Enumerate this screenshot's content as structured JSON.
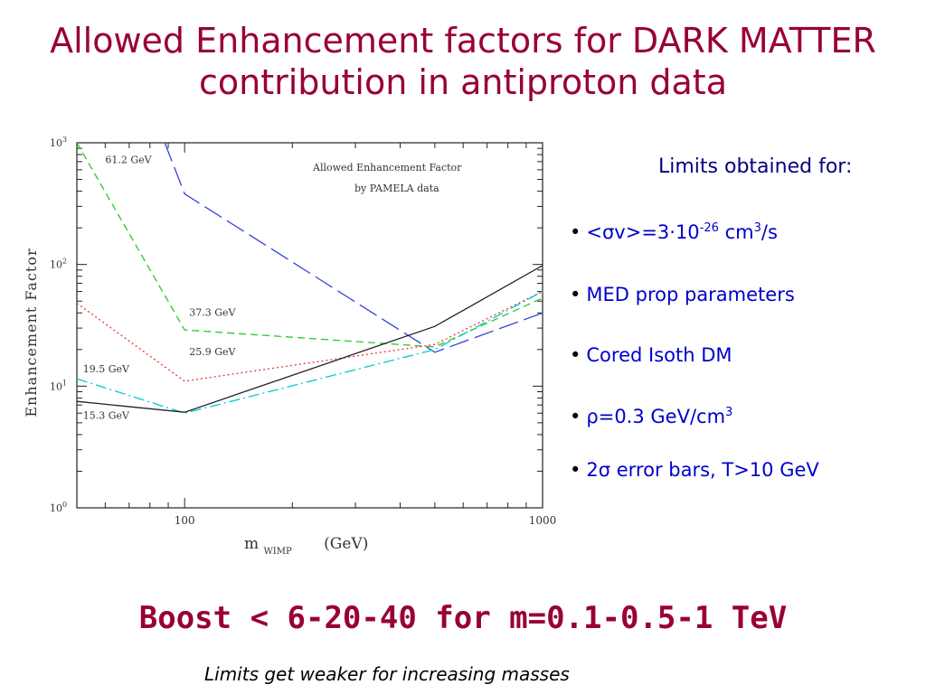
{
  "title_line1": "Allowed Enhancement factors for DARK MATTER",
  "title_line2": "contribution in antiproton data",
  "limits": {
    "heading": "Limits obtained for:",
    "sigma_prefix": "<σv>=3·10",
    "sigma_exp": "-26",
    "sigma_mid": " cm",
    "sigma_pow": "3",
    "sigma_suffix": "/s",
    "med": "MED prop parameters",
    "cored": "Cored Isoth DM",
    "rho_prefix": "ρ=0.3 GeV/cm",
    "rho_pow": "3",
    "error": "2σ error bars, T>10 GeV"
  },
  "boost": "Boost < 6-20-40 for m=0.1-0.5-1 TeV",
  "note": "Limits get weaker for increasing masses",
  "chart_data": {
    "type": "line",
    "title_line1": "Allowed Enhancement Factor",
    "title_line2": "by PAMELA data",
    "xlabel_main": "m",
    "xlabel_sub": "WIMP",
    "xlabel_unit": "(GeV)",
    "ylabel": "Enhancement Factor",
    "xscale": "log",
    "yscale": "log",
    "xlim": [
      50,
      1000
    ],
    "ylim": [
      1,
      1000
    ],
    "x_ticklabels": [
      {
        "v": 100,
        "t": "100"
      },
      {
        "v": 1000,
        "t": "1000"
      }
    ],
    "y_ticklabels": [
      {
        "v": 1,
        "base": "10",
        "exp": "0"
      },
      {
        "v": 10,
        "base": "10",
        "exp": "1"
      },
      {
        "v": 100,
        "base": "10",
        "exp": "2"
      },
      {
        "v": 1000,
        "base": "10",
        "exp": "3"
      }
    ],
    "series": [
      {
        "name": "61.2 GeV",
        "color": "#3344dd",
        "dash": "22,7",
        "x": [
          88,
          100,
          500,
          1000
        ],
        "y": [
          1000,
          380,
          19,
          40
        ],
        "label_x": 60,
        "label_y": 680
      },
      {
        "name": "37.3 GeV",
        "color": "#22cc22",
        "dash": "8,5",
        "x": [
          50,
          100,
          500,
          1000
        ],
        "y": [
          1000,
          29,
          21,
          53
        ],
        "label_x": 103,
        "label_y": 38
      },
      {
        "name": "25.9 GeV",
        "color": "#ee3333",
        "dash": "2,3",
        "x": [
          50,
          100,
          500,
          1000
        ],
        "y": [
          48,
          11,
          22,
          60
        ],
        "label_x": 103,
        "label_y": 18
      },
      {
        "name": "19.5 GeV",
        "color": "#00cccc",
        "dash": "12,4,2,4",
        "x": [
          50,
          100,
          500,
          1000
        ],
        "y": [
          11.5,
          6,
          20,
          60
        ],
        "label_x": 52,
        "label_y": 13
      },
      {
        "name": "15.3 GeV",
        "color": "#222222",
        "dash": "",
        "x": [
          50,
          100,
          500,
          1000
        ],
        "y": [
          7.5,
          6.1,
          31,
          98
        ],
        "label_x": 52,
        "label_y": 5.4
      }
    ]
  }
}
